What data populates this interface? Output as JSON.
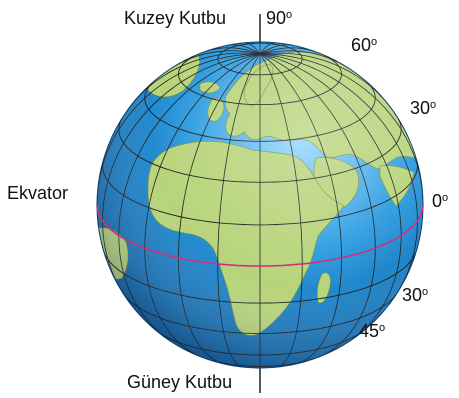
{
  "labels": {
    "north_pole": "Kuzey Kutbu",
    "south_pole": "Güney Kutbu",
    "equator": "Ekvator"
  },
  "latitudes": {
    "lat_90": "90",
    "lat_60": "60",
    "lat_30n": "30",
    "lat_0": "0",
    "lat_30s": "30",
    "lat_45s": "45",
    "degree_mark": "o"
  },
  "colors": {
    "ocean": "#1f8fd6",
    "land": "#b7d47a",
    "grid": "#1a1a1a",
    "equator_line": "#d0307a",
    "axis": "#111111"
  }
}
